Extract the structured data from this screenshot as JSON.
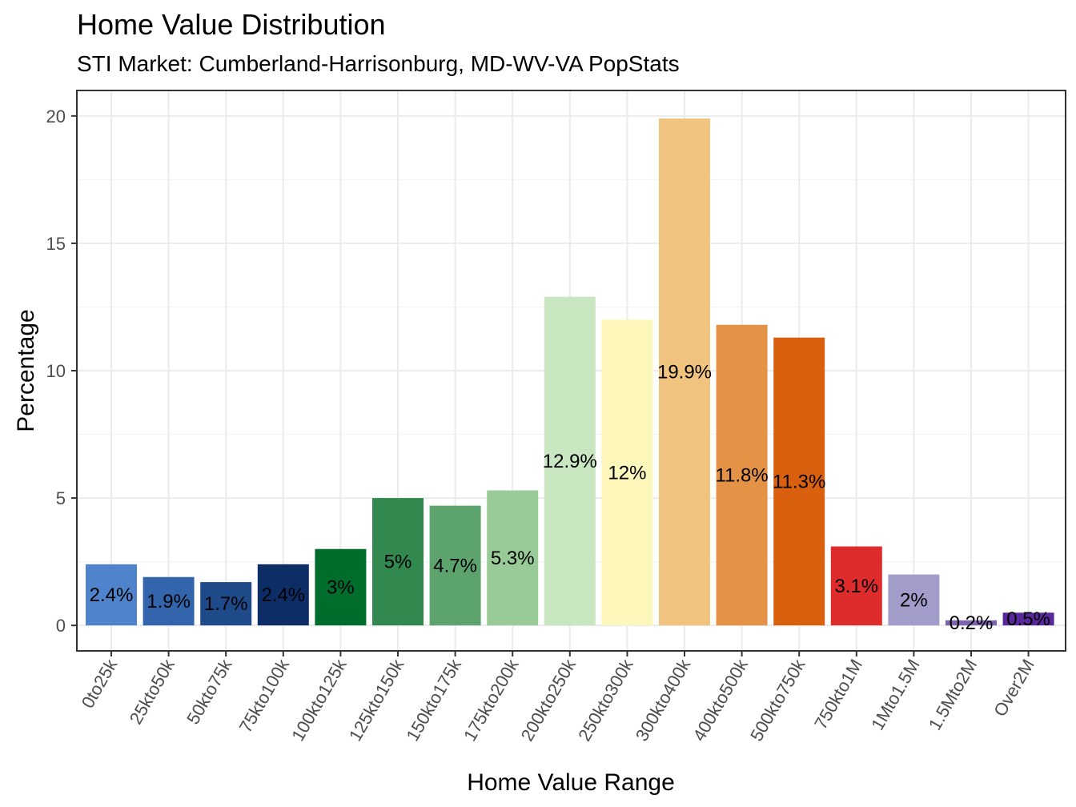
{
  "chart_data": {
    "type": "bar",
    "title": "Home Value Distribution",
    "subtitle": "STI Market: Cumberland-Harrisonburg, MD-WV-VA PopStats",
    "xlabel": "Home Value Range",
    "ylabel": "Percentage",
    "ylim": [
      -1,
      21
    ],
    "yticks": [
      0,
      5,
      10,
      15,
      20
    ],
    "grid": true,
    "categories": [
      "0to25k",
      "25kto50k",
      "50kto75k",
      "75kto100k",
      "100kto125k",
      "125kto150k",
      "150kto175k",
      "175kto200k",
      "200kto250k",
      "250kto300k",
      "300kto400k",
      "400kto500k",
      "500kto750k",
      "750kto1M",
      "1Mto1.5M",
      "1.5Mto2M",
      "Over2M"
    ],
    "values": [
      2.4,
      1.9,
      1.7,
      2.4,
      3.0,
      5.0,
      4.7,
      5.3,
      12.9,
      12.0,
      19.9,
      11.8,
      11.3,
      3.1,
      2.0,
      0.2,
      0.5
    ],
    "labels": [
      "2.4%",
      "1.9%",
      "1.7%",
      "2.4%",
      "3%",
      "5%",
      "4.7%",
      "5.3%",
      "12.9%",
      "12%",
      "19.9%",
      "11.8%",
      "11.3%",
      "3.1%",
      "2%",
      "0.2%",
      "0.5%"
    ],
    "colors": [
      "#4f84cd",
      "#3365ad",
      "#1f4a8a",
      "#0c2d66",
      "#006d2c",
      "#31894f",
      "#5ca36d",
      "#98cb98",
      "#c8e7c0",
      "#fef7bc",
      "#f0c47e",
      "#e39246",
      "#d9600f",
      "#de2c2c",
      "#a29ccb",
      "#7d63b0",
      "#59289c"
    ]
  }
}
